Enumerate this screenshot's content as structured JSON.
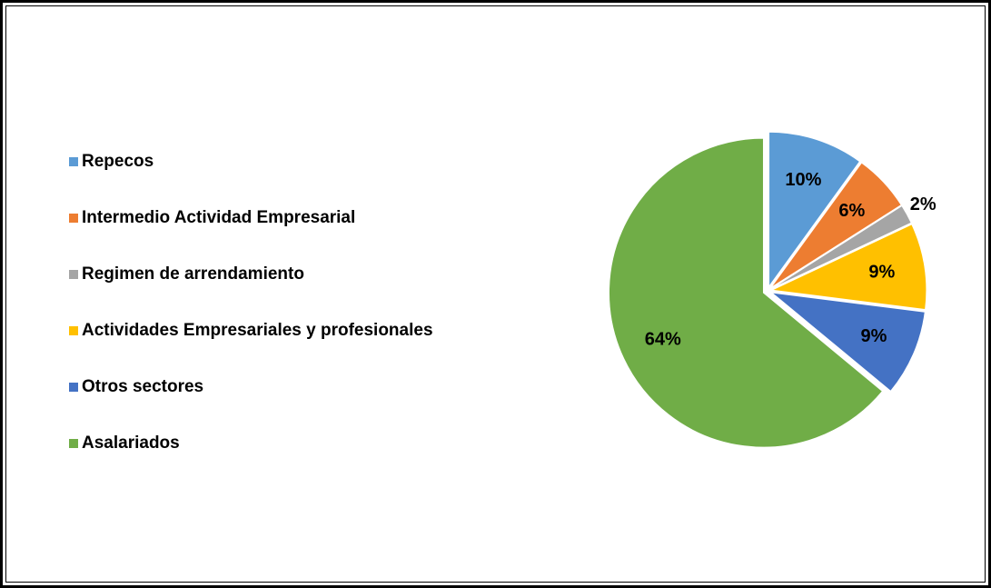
{
  "chart_data": {
    "type": "pie",
    "categories": [
      "Repecos",
      "Intermedio Actividad Empresarial",
      "Regimen de arrendamiento",
      "Actividades Empresariales y profesionales",
      "Otros sectores",
      "Asalariados"
    ],
    "values": [
      10,
      6,
      2,
      9,
      9,
      64
    ],
    "value_labels": [
      "10%",
      "6%",
      "2%",
      "9%",
      "9%",
      "64%"
    ],
    "colors": [
      "#5b9bd5",
      "#ed7d31",
      "#a5a5a5",
      "#ffc000",
      "#4472c4",
      "#70ad47"
    ],
    "legend": "left"
  }
}
